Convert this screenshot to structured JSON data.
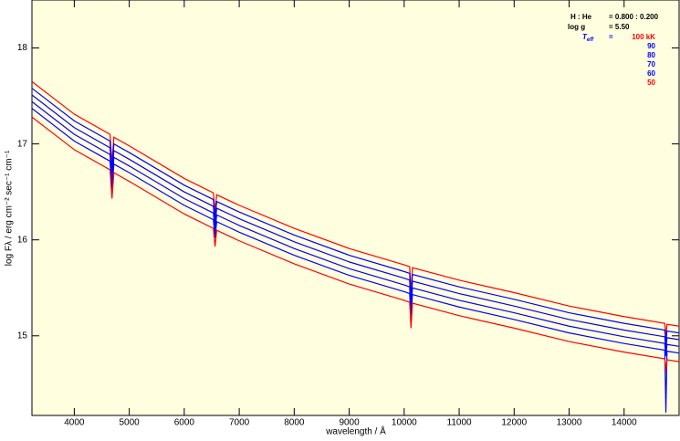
{
  "chart_data": {
    "type": "line",
    "xlabel": "wavelength / Å",
    "ylabel": "log Fλ / erg cm⁻² sec⁻¹ cm⁻¹",
    "x": [
      3230,
      4000,
      4650,
      4686,
      4720,
      5000,
      6000,
      6530,
      6560,
      6590,
      7000,
      8000,
      9000,
      10000,
      10100,
      10124,
      10150,
      11000,
      12000,
      13000,
      14000,
      14740,
      14760,
      14780,
      15000
    ],
    "series": [
      {
        "name": "100 kK",
        "color": "#ff0000",
        "values": [
          17.65,
          17.31,
          17.1,
          16.8,
          17.07,
          16.98,
          16.64,
          16.49,
          16.3,
          16.47,
          16.36,
          16.12,
          15.91,
          15.74,
          15.72,
          15.45,
          15.71,
          15.58,
          15.45,
          15.31,
          15.2,
          15.13,
          15.0,
          15.12,
          15.1
        ]
      },
      {
        "name": "90",
        "color": "#0000ff",
        "values": [
          17.58,
          17.24,
          17.03,
          16.73,
          17.0,
          16.91,
          16.57,
          16.42,
          16.23,
          16.4,
          16.29,
          16.05,
          15.84,
          15.67,
          15.65,
          15.38,
          15.64,
          15.51,
          15.38,
          15.24,
          15.13,
          15.06,
          14.93,
          15.05,
          15.03
        ]
      },
      {
        "name": "80",
        "color": "#0000ff",
        "values": [
          17.51,
          17.17,
          16.96,
          16.66,
          16.93,
          16.84,
          16.5,
          16.35,
          16.16,
          16.33,
          16.22,
          15.98,
          15.77,
          15.6,
          15.58,
          15.31,
          15.57,
          15.44,
          15.31,
          15.17,
          15.06,
          14.99,
          14.86,
          14.98,
          14.96
        ]
      },
      {
        "name": "70",
        "color": "#0000ff",
        "values": [
          17.44,
          17.1,
          16.89,
          16.59,
          16.86,
          16.77,
          16.43,
          16.28,
          16.09,
          16.26,
          16.15,
          15.91,
          15.7,
          15.53,
          15.51,
          15.24,
          15.5,
          15.37,
          15.24,
          15.1,
          14.99,
          14.92,
          14.79,
          14.91,
          14.89
        ]
      },
      {
        "name": "60",
        "color": "#0000ff",
        "values": [
          17.37,
          17.03,
          16.82,
          16.52,
          16.79,
          16.7,
          16.36,
          16.21,
          16.02,
          16.19,
          16.08,
          15.84,
          15.63,
          15.46,
          15.44,
          15.17,
          15.43,
          15.3,
          15.17,
          15.03,
          14.92,
          14.85,
          14.2,
          14.84,
          14.82
        ]
      },
      {
        "name": "50",
        "color": "#ff0000",
        "values": [
          17.28,
          16.94,
          16.73,
          16.43,
          16.7,
          16.61,
          16.27,
          16.12,
          15.93,
          16.1,
          15.99,
          15.75,
          15.54,
          15.37,
          15.35,
          15.08,
          15.34,
          15.21,
          15.08,
          14.94,
          14.83,
          14.76,
          14.63,
          14.75,
          14.73
        ]
      }
    ],
    "xlim": [
      3230,
      15000
    ],
    "ylim": [
      14.17,
      18.5
    ],
    "xticks": [
      4000,
      5000,
      6000,
      7000,
      8000,
      9000,
      10000,
      11000,
      12000,
      13000,
      14000
    ],
    "yticks": [
      15,
      16,
      17,
      18
    ],
    "legend": {
      "position": "upper right",
      "composition_label": "H : He",
      "composition_value": "= 0.800 : 0.200",
      "logg_label": "log g",
      "logg_value": "= 5.50",
      "teff_label": "T",
      "teff_sub": "eff",
      "teff_eq": "="
    }
  }
}
